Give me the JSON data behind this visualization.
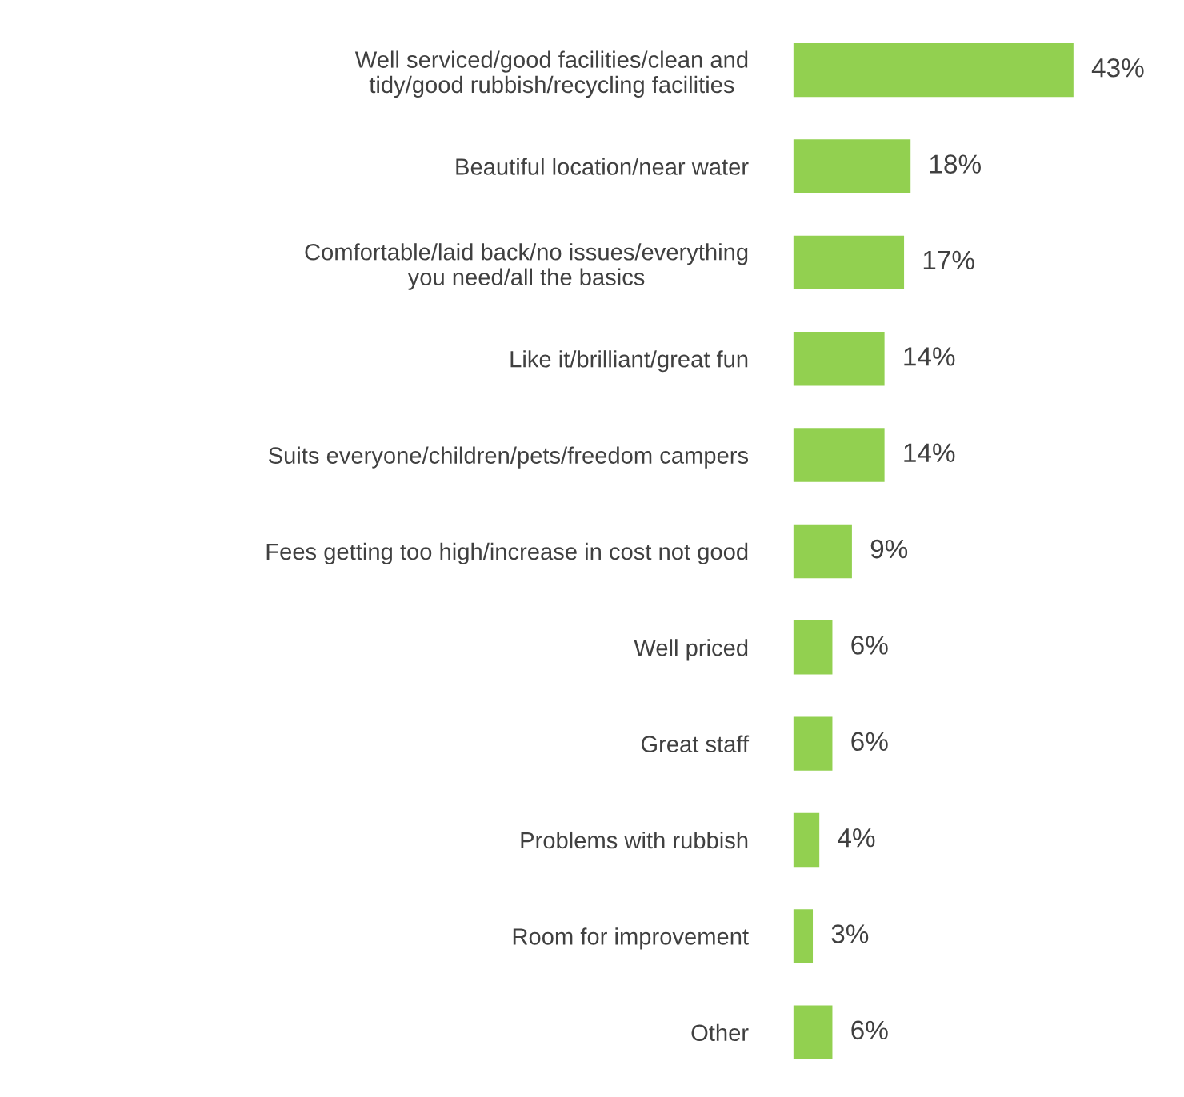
{
  "chart_data": {
    "type": "bar",
    "orientation": "horizontal",
    "categories": [
      "Well serviced/good facilities/clean and\ntidy/good rubbish/recycling facilities",
      "Beautiful location/near water",
      "Comfortable/laid back/no issues/everything\nyou need/all the basics",
      "Like it/brilliant/great fun",
      "Suits everyone/children/pets/freedom campers",
      "Fees getting too high/increase in cost not good",
      "Well priced",
      "Great staff",
      "Problems with rubbish",
      "Room for improvement",
      "Other"
    ],
    "values": [
      43,
      18,
      17,
      14,
      14,
      9,
      6,
      6,
      4,
      3,
      6
    ],
    "value_labels": [
      "43%",
      "18%",
      "17%",
      "14%",
      "14%",
      "9%",
      "6%",
      "6%",
      "4%",
      "3%",
      "6%"
    ],
    "color": "#92d050",
    "tick_labels": "y",
    "grid": false,
    "legend": false
  }
}
